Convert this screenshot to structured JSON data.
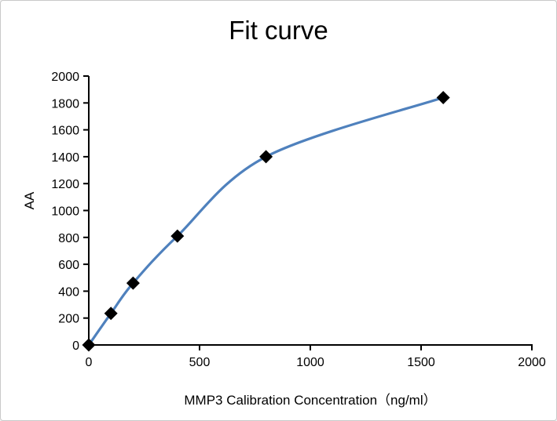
{
  "window": {
    "background_color": "#ffffff",
    "border_color": "#c9c9c9"
  },
  "chart_data": {
    "type": "line",
    "title": "Fit curve",
    "xlabel": "MMP3 Calibration Concentration（ng/ml）",
    "ylabel": "AA",
    "x": [
      0,
      100,
      200,
      400,
      800,
      1600
    ],
    "y": [
      0,
      235,
      460,
      810,
      1400,
      1840
    ],
    "xlim": [
      0,
      2000
    ],
    "ylim": [
      0,
      2000
    ],
    "x_ticks": [
      0,
      500,
      1000,
      1500,
      2000
    ],
    "y_ticks": [
      0,
      200,
      400,
      600,
      800,
      1000,
      1200,
      1400,
      1600,
      1800,
      2000
    ],
    "grid": false,
    "legend_position": "none",
    "line_color": "#4f81bd",
    "line_smooth": true,
    "marker": "diamond",
    "marker_color": "#000000",
    "axis_color": "#000000"
  }
}
